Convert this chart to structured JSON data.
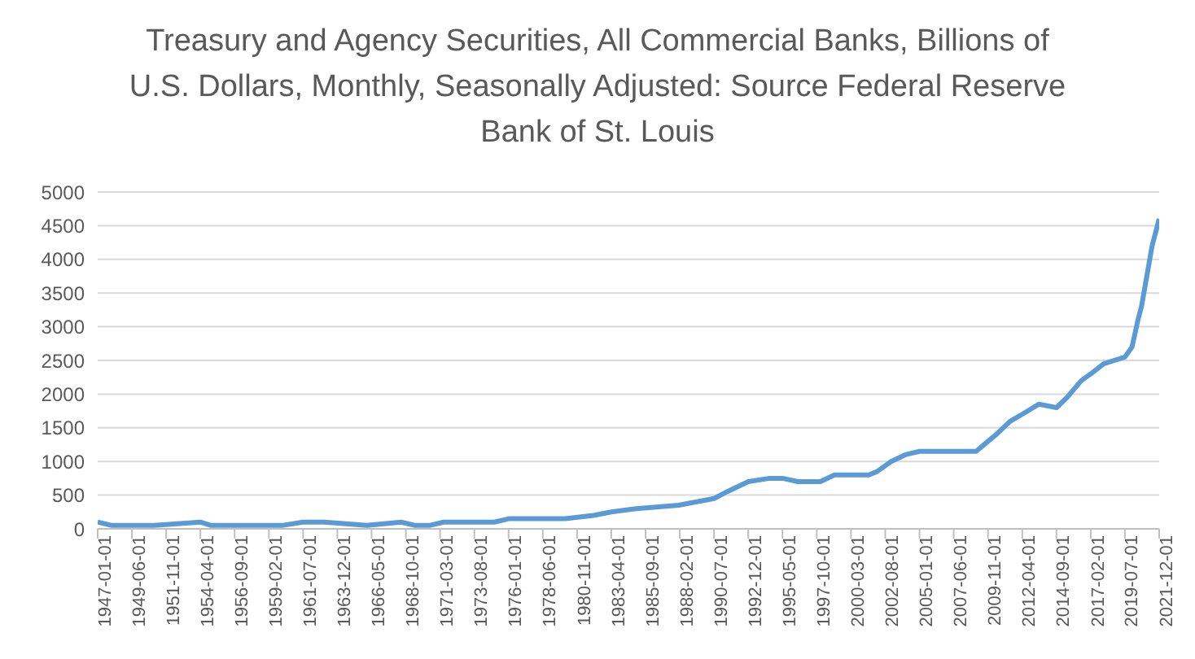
{
  "chart_data": {
    "type": "line",
    "title": "Treasury and Agency Securities, All Commercial Banks, Billions of U.S. Dollars, Monthly, Seasonally Adjusted: Source Federal Reserve Bank of St. Louis",
    "x": [
      "1947-01",
      "1948-01",
      "1951-01",
      "1954-04",
      "1955-01",
      "1960-01",
      "1961-07",
      "1963-01",
      "1966-01",
      "1968-06",
      "1969-06",
      "1970-06",
      "1971-06",
      "1975-01",
      "1976-01",
      "1980-01",
      "1982-01",
      "1983-04",
      "1985-01",
      "1988-01",
      "1990-07",
      "1991-06",
      "1992-12",
      "1994-06",
      "1995-05",
      "1996-06",
      "1998-01",
      "1999-01",
      "2000-03",
      "2001-06",
      "2002-01",
      "2003-01",
      "2004-01",
      "2005-01",
      "2006-01",
      "2007-06",
      "2008-06",
      "2009-01",
      "2009-11",
      "2010-06",
      "2011-06",
      "2012-04",
      "2013-06",
      "2014-09",
      "2015-06",
      "2016-06",
      "2017-02",
      "2018-01",
      "2019-07",
      "2020-01",
      "2020-06",
      "2020-09",
      "2021-01",
      "2021-06",
      "2021-12"
    ],
    "series": [
      {
        "color": "#5b9bd5",
        "values": [
          100,
          50,
          50,
          100,
          50,
          50,
          100,
          100,
          50,
          100,
          50,
          50,
          100,
          100,
          150,
          150,
          200,
          250,
          300,
          350,
          450,
          550,
          700,
          750,
          750,
          700,
          700,
          800,
          800,
          800,
          850,
          1000,
          1100,
          1150,
          1150,
          1150,
          1150,
          1150,
          1300,
          1400,
          1600,
          1700,
          1850,
          1800,
          1950,
          2200,
          2300,
          2450,
          2550,
          2700,
          3100,
          3300,
          3700,
          4200,
          4600
        ]
      }
    ],
    "xlim": [
      "1947-01",
      "2021-12"
    ],
    "xticks": [
      "1947-01-01",
      "1949-06-01",
      "1951-11-01",
      "1954-04-01",
      "1956-09-01",
      "1959-02-01",
      "1961-07-01",
      "1963-12-01",
      "1966-05-01",
      "1968-10-01",
      "1971-03-01",
      "1973-08-01",
      "1976-01-01",
      "1978-06-01",
      "1980-11-01",
      "1983-04-01",
      "1985-09-01",
      "1988-02-01",
      "1990-07-01",
      "1992-12-01",
      "1995-05-01",
      "1997-10-01",
      "2000-03-01",
      "2002-08-01",
      "2005-01-01",
      "2007-06-01",
      "2009-11-01",
      "2012-04-01",
      "2014-09-01",
      "2017-02-01",
      "2019-07-01",
      "2021-12-01"
    ],
    "ylim": [
      0,
      5000
    ],
    "yticks": [
      0,
      500,
      1000,
      1500,
      2000,
      2500,
      3000,
      3500,
      4000,
      4500,
      5000
    ],
    "grid": "y",
    "marker": "none",
    "line_style": "solid"
  }
}
